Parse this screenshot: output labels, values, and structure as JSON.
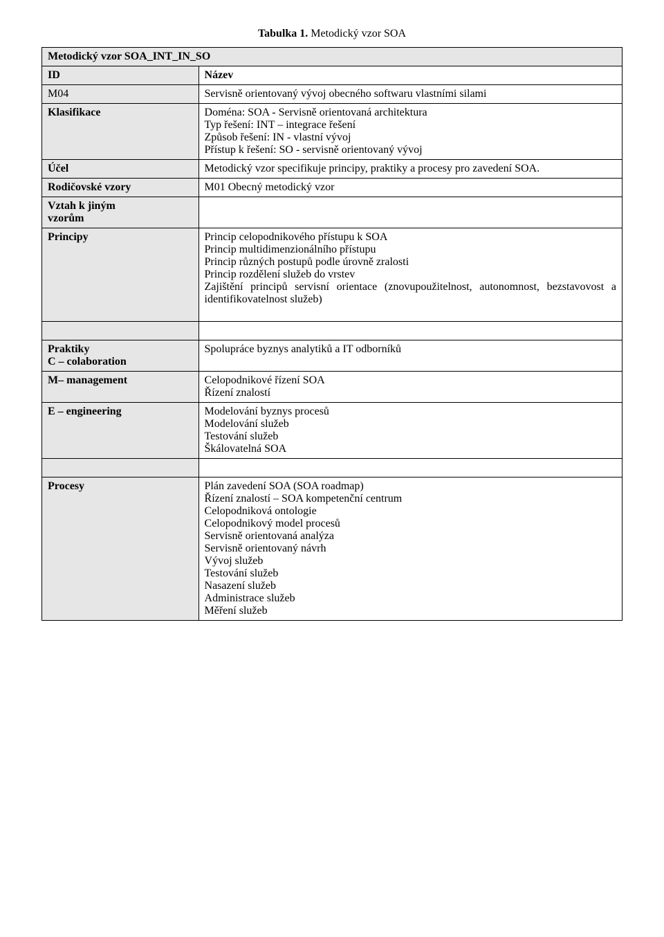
{
  "caption": {
    "label": "Tabulka 1.",
    "text": " Metodický vzor SOA"
  },
  "section_title": "Metodický vzor SOA_INT_IN_SO",
  "rows": {
    "id": {
      "label": "ID",
      "value": "Název"
    },
    "m04": {
      "label": "M04",
      "value": "Servisně orientovaný vývoj obecného softwaru vlastními silami"
    },
    "klasifikace": {
      "label": "Klasifikace",
      "lines": [
        "Doména: SOA  - Servisně orientovaná architektura",
        "Typ řešení: INT – integrace řešení",
        "Způsob řešení: IN - vlastní vývoj",
        "Přístup k řešení: SO - servisně orientovaný vývoj"
      ]
    },
    "ucel": {
      "label": "Účel",
      "value": "Metodický vzor specifikuje principy, praktiky a procesy pro zavedení SOA."
    },
    "rodicovske": {
      "label": "Rodičovské vzory",
      "value": "M01 Obecný metodický vzor"
    },
    "vztah": {
      "label_line1": "Vztah k jiným",
      "label_line2": "vzorům",
      "value": ""
    },
    "principy": {
      "label": "Principy",
      "lines": [
        "Princip celopodnikového přístupu k SOA",
        "Princip multidimenzionálního přístupu",
        "Princip různých postupů podle úrovně zralosti",
        "Princip rozdělení služeb do vrstev",
        "Zajištění principů servisní orientace (znovupoužitelnost, autonomnost, bezstavovost a identifikovatelnost služeb)"
      ]
    },
    "praktiky": {
      "label_line1": "Praktiky",
      "label_line2": "C – colaboration",
      "value": "Spolupráce byznys analytiků a IT odborníků"
    },
    "management": {
      "label": "M– management",
      "lines": [
        "Celopodnikové řízení SOA",
        "Řízení znalostí"
      ]
    },
    "engineering": {
      "label": "E – engineering",
      "lines": [
        "Modelování byznys procesů",
        "Modelování služeb",
        "Testování služeb",
        "Škálovatelná SOA"
      ]
    },
    "procesy": {
      "label": "Procesy",
      "lines": [
        "Plán zavedení SOA (SOA roadmap)",
        "Řízení znalostí – SOA kompetenční centrum",
        "Celopodniková ontologie",
        "Celopodnikový model  procesů",
        "Servisně orientovaná analýza",
        "Servisně orientovaný návrh",
        "Vývoj služeb",
        "Testování služeb",
        "Nasazení služeb",
        "Administrace služeb",
        "Měření služeb"
      ]
    }
  }
}
